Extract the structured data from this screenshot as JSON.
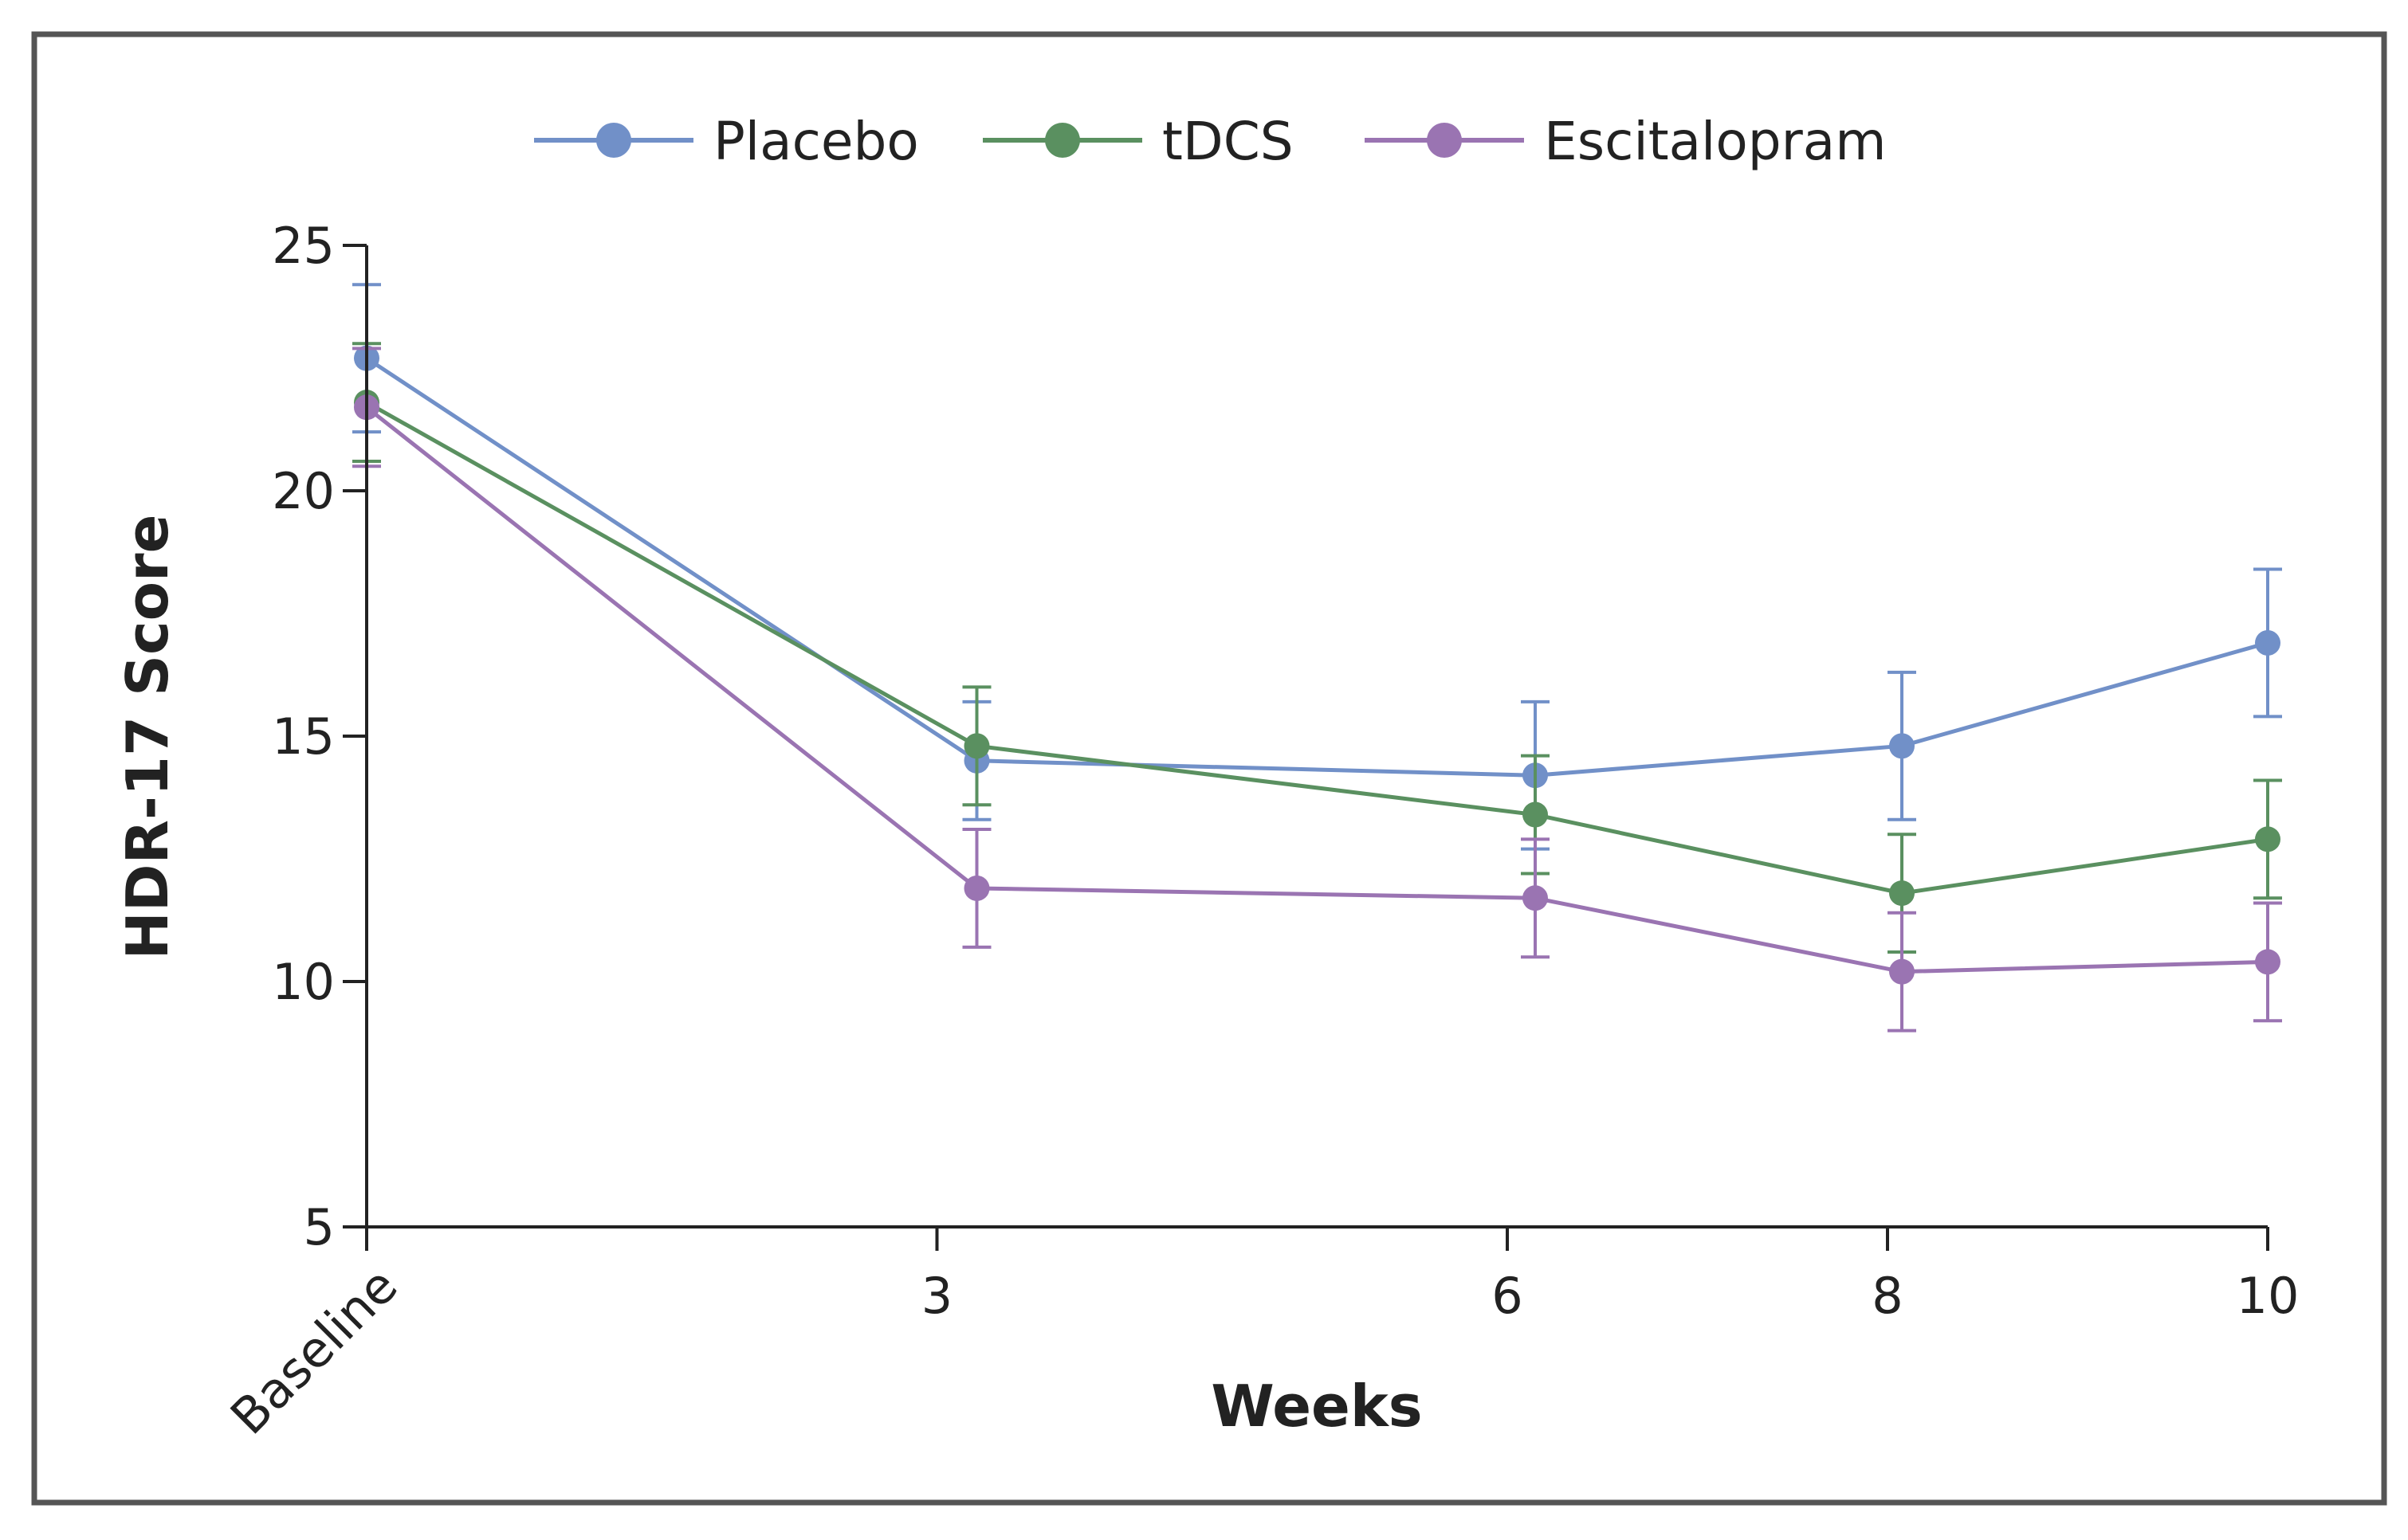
{
  "chart_data": {
    "type": "line",
    "title": "",
    "xlabel": "Weeks",
    "ylabel": "HDR-17 Score",
    "x": [
      "Baseline",
      "3",
      "6",
      "8",
      "10"
    ],
    "x_values": [
      0,
      3,
      6,
      8,
      10
    ],
    "ylim": [
      5,
      25
    ],
    "yticks": [
      5,
      10,
      15,
      20,
      25
    ],
    "ytick_labels": [
      "5",
      "10",
      "15",
      "20",
      "25"
    ],
    "grid": false,
    "error_bars": true,
    "legend_position": "top-center",
    "series": [
      {
        "name": "Placebo",
        "color": "#7190c8",
        "values": [
          22.7,
          14.5,
          14.2,
          14.8,
          16.9
        ],
        "error": [
          1.5,
          1.2,
          1.5,
          1.5,
          1.5
        ]
      },
      {
        "name": "tDCS",
        "color": "#5a9060",
        "values": [
          21.8,
          14.8,
          13.4,
          11.8,
          12.9
        ],
        "error": [
          1.2,
          1.2,
          1.2,
          1.2,
          1.2
        ]
      },
      {
        "name": "Escitalopram",
        "color": "#9a74b2",
        "values": [
          21.7,
          11.9,
          11.7,
          10.2,
          10.4
        ],
        "error": [
          1.2,
          1.2,
          1.2,
          1.2,
          1.2
        ]
      }
    ]
  },
  "colors": {
    "frame": "#555555",
    "axis": "#222222"
  }
}
